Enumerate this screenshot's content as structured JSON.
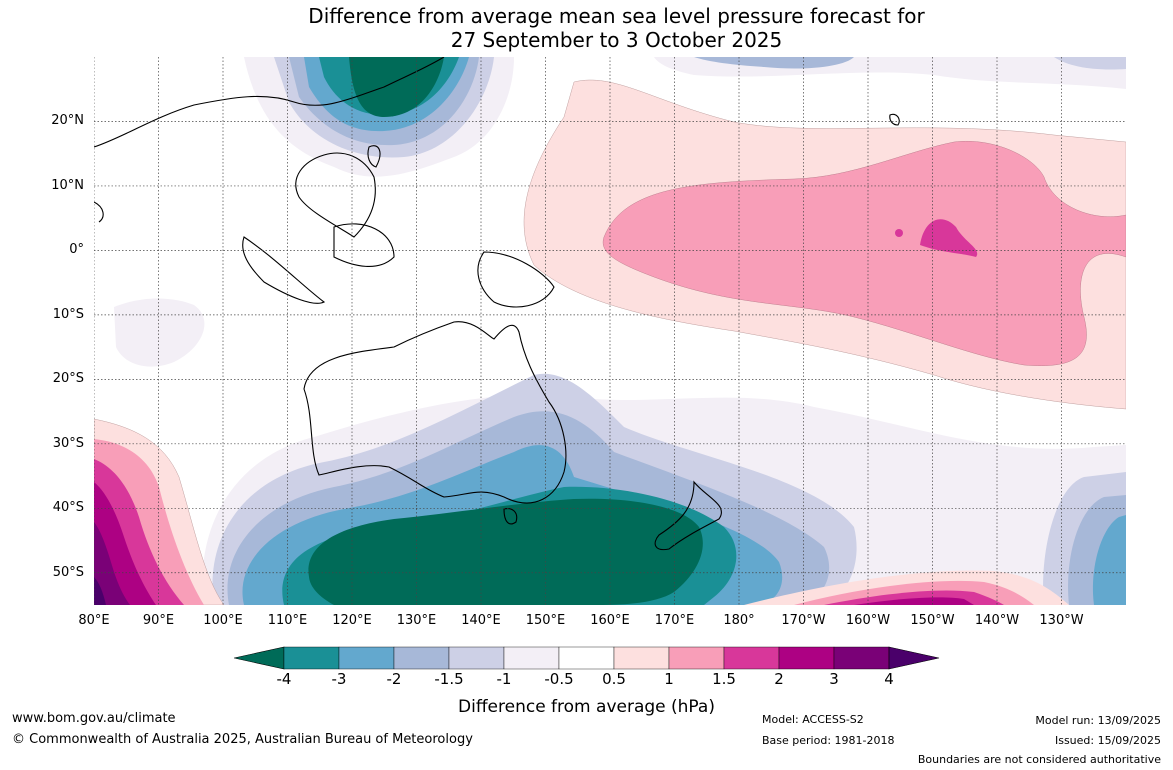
{
  "title": {
    "line1": "Difference from average mean sea level pressure forecast for",
    "line2": "27 September to 3 October 2025"
  },
  "map": {
    "lat_labels": [
      "20°N",
      "10°N",
      "0°",
      "10°S",
      "20°S",
      "30°S",
      "40°S",
      "50°S"
    ],
    "lon_labels": [
      "80°E",
      "90°E",
      "100°E",
      "110°E",
      "120°E",
      "130°E",
      "140°E",
      "150°E",
      "160°E",
      "170°E",
      "180°",
      "170°W",
      "160°W",
      "150°W",
      "140°W",
      "130°W"
    ],
    "lat_range": [
      -55,
      30
    ],
    "lon_range": [
      80,
      240
    ]
  },
  "colorbar": {
    "ticks": [
      "-4",
      "-3",
      "-2",
      "-1.5",
      "-1",
      "-0.5",
      "0.5",
      "1",
      "1.5",
      "2",
      "3",
      "4"
    ],
    "colors": [
      "#006b58",
      "#1a9096",
      "#63a8ce",
      "#a7b8d8",
      "#cdd0e6",
      "#f3eff6",
      "#ffffff",
      "#fde0df",
      "#f89eb8",
      "#d8379a",
      "#ad0183",
      "#7a0177",
      "#4a006a"
    ],
    "label": "Difference from average (hPa)"
  },
  "footer": {
    "url": "www.bom.gov.au/climate",
    "copyright": "© Commonwealth of Australia 2025, Australian Bureau of Meteorology",
    "model": "Model: ACCESS-S2",
    "base_period": "Base period: 1981-2018",
    "model_run": "Model run: 13/09/2025",
    "issued": "Issued: 15/09/2025",
    "disclaimer": "Boundaries are not considered authoritative"
  }
}
